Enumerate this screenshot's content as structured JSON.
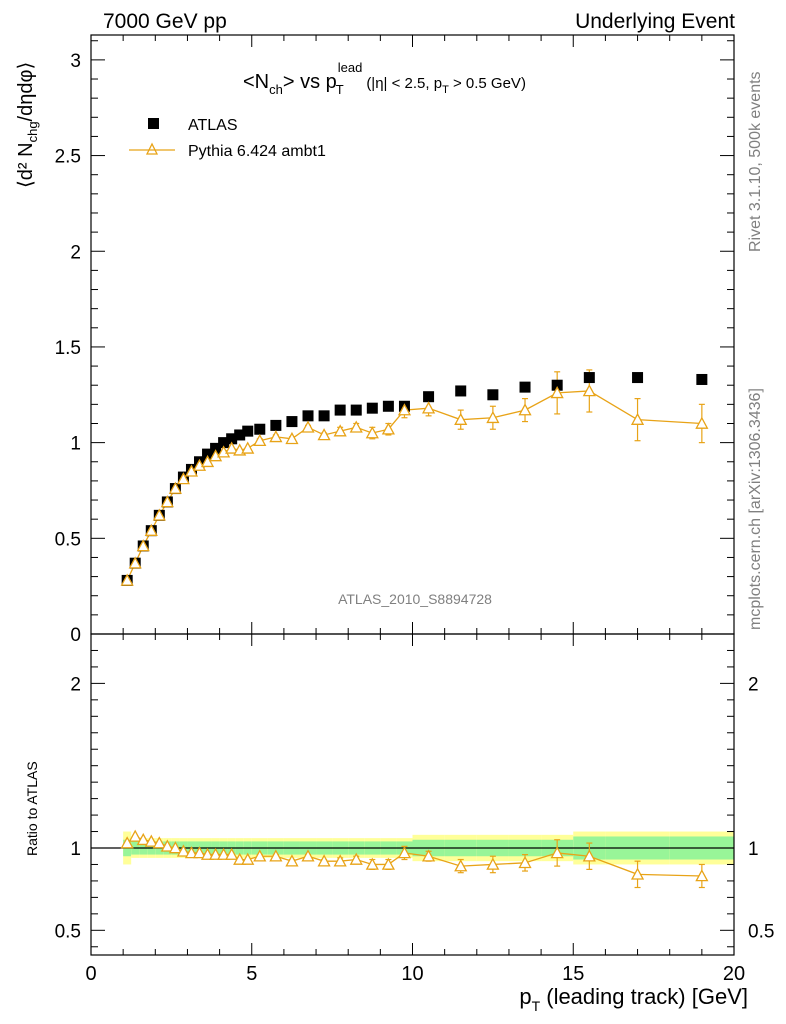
{
  "header": {
    "left": "7000 GeV pp",
    "right": "Underlying Event"
  },
  "side_labels": {
    "rivet": "Rivet 3.1.10,  500k events",
    "mcplots": "mcplots.cern.ch [arXiv:1306.3436]"
  },
  "plot_title": {
    "main": "<N",
    "main_sub": "ch",
    "middle": "> vs p",
    "p_sub": "T",
    "p_sup": "lead",
    "cut": "(|η| < 2.5, p",
    "cut_sub": "T",
    "cut_end": " > 0.5 GeV)"
  },
  "watermark": "ATLAS_2010_S8894728",
  "axes": {
    "ylabel_main": "⟨d² N",
    "ylabel_sub": "chg",
    "ylabel_end": "/dηdφ⟩",
    "ylabel_ratio": "Ratio to ATLAS",
    "xlabel_p": "p",
    "xlabel_sub": "T",
    "xlabel_rest": " (leading track) [GeV]"
  },
  "legend": {
    "data_label": "ATLAS",
    "mc_label": "Pythia 6.424 ambt1"
  },
  "colors": {
    "data": "#000000",
    "mc": "#e8a317",
    "band_inner": "#98f598",
    "band_outer": "#ffff99"
  },
  "chart_data": [
    {
      "type": "scatter",
      "panel": "main",
      "xlim": [
        0,
        20
      ],
      "ylim": [
        0,
        3.13
      ],
      "yticks": [
        "0",
        "0.5",
        "1",
        "1.5",
        "2",
        "2.5",
        "3"
      ],
      "xticks": [
        "0",
        "5",
        "10",
        "15",
        "20"
      ],
      "series": [
        {
          "name": "ATLAS",
          "marker": "filled-square",
          "x": [
            1.125,
            1.375,
            1.625,
            1.875,
            2.125,
            2.375,
            2.625,
            2.875,
            3.125,
            3.375,
            3.625,
            3.875,
            4.125,
            4.375,
            4.625,
            4.875,
            5.25,
            5.75,
            6.25,
            6.75,
            7.25,
            7.75,
            8.25,
            8.75,
            9.25,
            9.75,
            10.5,
            11.5,
            12.5,
            13.5,
            14.5,
            15.5,
            17.0,
            19.0
          ],
          "y": [
            0.28,
            0.37,
            0.46,
            0.54,
            0.62,
            0.69,
            0.76,
            0.82,
            0.86,
            0.9,
            0.94,
            0.97,
            1.0,
            1.02,
            1.04,
            1.06,
            1.07,
            1.09,
            1.11,
            1.14,
            1.14,
            1.17,
            1.17,
            1.18,
            1.19,
            1.19,
            1.24,
            1.27,
            1.25,
            1.29,
            1.3,
            1.34,
            1.34,
            1.33
          ]
        },
        {
          "name": "Pythia 6.424 ambt1",
          "marker": "open-triangle",
          "x": [
            1.125,
            1.375,
            1.625,
            1.875,
            2.125,
            2.375,
            2.625,
            2.875,
            3.125,
            3.375,
            3.625,
            3.875,
            4.125,
            4.375,
            4.625,
            4.875,
            5.25,
            5.75,
            6.25,
            6.75,
            7.25,
            7.75,
            8.25,
            8.75,
            9.25,
            9.75,
            10.5,
            11.5,
            12.5,
            13.5,
            14.5,
            15.5,
            17.0,
            19.0
          ],
          "y": [
            0.28,
            0.37,
            0.46,
            0.54,
            0.62,
            0.69,
            0.76,
            0.81,
            0.85,
            0.88,
            0.9,
            0.93,
            0.95,
            0.97,
            0.96,
            0.97,
            1.01,
            1.03,
            1.02,
            1.08,
            1.04,
            1.06,
            1.08,
            1.05,
            1.07,
            1.17,
            1.18,
            1.12,
            1.13,
            1.17,
            1.26,
            1.27,
            1.12,
            1.1
          ],
          "yerr": [
            0,
            0,
            0,
            0,
            0,
            0,
            0,
            0,
            0,
            0,
            0,
            0,
            0,
            0,
            0,
            0,
            0.01,
            0.01,
            0.01,
            0.01,
            0.01,
            0.02,
            0.02,
            0.03,
            0.03,
            0.04,
            0.04,
            0.05,
            0.06,
            0.06,
            0.11,
            0.11,
            0.11,
            0.1
          ]
        }
      ]
    },
    {
      "type": "scatter",
      "panel": "ratio",
      "xlim": [
        0,
        20
      ],
      "ylim": [
        0.35,
        2.3
      ],
      "yticks": [
        "0.5",
        "1",
        "2"
      ],
      "series": [
        {
          "name": "Pythia 6.424 ambt1",
          "x": [
            1.125,
            1.375,
            1.625,
            1.875,
            2.125,
            2.375,
            2.625,
            2.875,
            3.125,
            3.375,
            3.625,
            3.875,
            4.125,
            4.375,
            4.625,
            4.875,
            5.25,
            5.75,
            6.25,
            6.75,
            7.25,
            7.75,
            8.25,
            8.75,
            9.25,
            9.75,
            10.5,
            11.5,
            12.5,
            13.5,
            14.5,
            15.5,
            17.0,
            19.0
          ],
          "y": [
            1.03,
            1.07,
            1.05,
            1.04,
            1.03,
            1.01,
            1.0,
            0.98,
            0.97,
            0.97,
            0.96,
            0.96,
            0.96,
            0.96,
            0.93,
            0.93,
            0.95,
            0.95,
            0.92,
            0.95,
            0.92,
            0.92,
            0.93,
            0.9,
            0.9,
            0.97,
            0.95,
            0.89,
            0.9,
            0.91,
            0.97,
            0.95,
            0.84,
            0.83
          ],
          "yerr": [
            0,
            0,
            0,
            0,
            0,
            0,
            0,
            0,
            0,
            0,
            0,
            0,
            0,
            0,
            0,
            0,
            0.01,
            0.01,
            0.01,
            0.01,
            0.01,
            0.02,
            0.02,
            0.03,
            0.03,
            0.04,
            0.03,
            0.04,
            0.05,
            0.05,
            0.08,
            0.08,
            0.08,
            0.07
          ]
        }
      ],
      "band_edges": [
        1.0,
        1.25,
        1.5,
        1.75,
        2.0,
        2.25,
        2.5,
        2.75,
        3.0,
        3.25,
        3.5,
        3.75,
        4.0,
        4.25,
        4.5,
        4.75,
        5.0,
        5.5,
        6.0,
        6.5,
        7.0,
        7.5,
        8.0,
        8.5,
        9.0,
        9.5,
        10.0,
        11.0,
        12.0,
        13.0,
        14.0,
        15.0,
        16.0,
        18.0,
        20.0
      ],
      "band_inner": [
        0.05,
        0.04,
        0.04,
        0.04,
        0.04,
        0.04,
        0.04,
        0.04,
        0.04,
        0.04,
        0.04,
        0.04,
        0.04,
        0.04,
        0.04,
        0.04,
        0.04,
        0.04,
        0.04,
        0.04,
        0.04,
        0.04,
        0.04,
        0.04,
        0.04,
        0.04,
        0.05,
        0.05,
        0.05,
        0.05,
        0.05,
        0.07,
        0.07,
        0.07
      ],
      "band_outer": [
        0.1,
        0.06,
        0.06,
        0.06,
        0.06,
        0.06,
        0.06,
        0.06,
        0.06,
        0.06,
        0.06,
        0.06,
        0.06,
        0.06,
        0.06,
        0.06,
        0.06,
        0.06,
        0.06,
        0.06,
        0.06,
        0.06,
        0.06,
        0.06,
        0.06,
        0.06,
        0.08,
        0.08,
        0.08,
        0.08,
        0.08,
        0.1,
        0.1,
        0.1
      ]
    }
  ]
}
